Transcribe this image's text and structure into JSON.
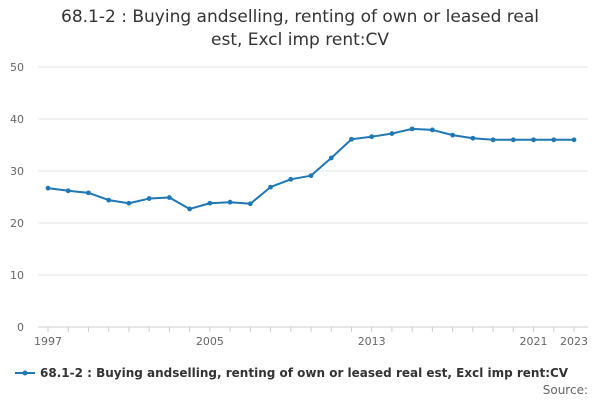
{
  "chart_data": {
    "type": "line",
    "title_lines": [
      "68.1-2 : Buying andselling, renting of own or leased real",
      "est, Excl imp rent:CV"
    ],
    "x": [
      1997,
      1998,
      1999,
      2000,
      2001,
      2002,
      2003,
      2004,
      2005,
      2006,
      2007,
      2008,
      2009,
      2010,
      2011,
      2012,
      2013,
      2014,
      2015,
      2016,
      2017,
      2018,
      2019,
      2020,
      2021,
      2022,
      2023
    ],
    "series": [
      {
        "name": "68.1-2 : Buying andselling, renting of own or leased real est, Excl imp rent:CV",
        "color": "#1f77b4",
        "values": [
          26.7,
          26.2,
          25.8,
          24.4,
          23.8,
          24.7,
          24.9,
          22.7,
          23.8,
          24.0,
          23.7,
          26.9,
          28.4,
          29.1,
          32.5,
          36.1,
          36.6,
          37.2,
          38.1,
          37.9,
          36.9,
          36.3,
          36.0,
          36.0,
          36.0,
          36.0,
          36.0
        ]
      }
    ],
    "x_ticks": [
      1997,
      2005,
      2013,
      2021,
      2023
    ],
    "y_ticks": [
      0,
      10,
      20,
      30,
      40,
      50
    ],
    "ylim": [
      0,
      50
    ],
    "xlim": [
      1997,
      2023
    ],
    "grid": "horizontal",
    "legend_position": "bottom-left"
  },
  "legend": {
    "label": "68.1-2 : Buying andselling, renting of own or leased real est, Excl imp rent:CV"
  },
  "source": {
    "label": "Source:"
  }
}
